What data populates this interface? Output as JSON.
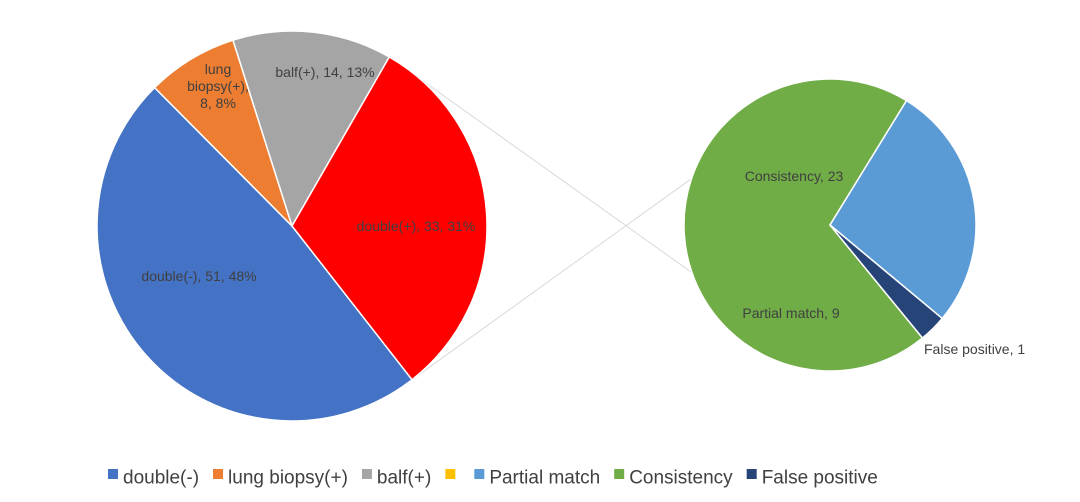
{
  "chart_data": [
    {
      "type": "pie",
      "categories": [
        "double(-)",
        "lung biopsy(+)",
        "balf(+)",
        "double(+)"
      ],
      "values": [
        51,
        8,
        14,
        33
      ],
      "percent_labels": [
        "48%",
        "8%",
        "13%",
        "31%"
      ],
      "colors": [
        "#4472C4",
        "#ED7D31",
        "#A5A5A5",
        "#FF0000"
      ],
      "data_labels": [
        "double(-), 51, 48%",
        "lung biopsy(+), 8, 8%",
        "balf(+), 14, 13%",
        "double(+), 33, 31%"
      ]
    },
    {
      "type": "pie",
      "categories": [
        "Consistency",
        "Partial match",
        "False positive"
      ],
      "values": [
        23,
        9,
        1
      ],
      "colors": [
        "#70AD47",
        "#5B9BD5",
        "#264478"
      ],
      "data_labels": [
        "Consistency, 23",
        "Partial match, 9",
        "False positive, 1"
      ]
    }
  ],
  "legend": {
    "position": "bottom",
    "items": [
      {
        "label": "double(-)",
        "color": "#4472C4"
      },
      {
        "label": "lung biopsy(+)",
        "color": "#ED7D31"
      },
      {
        "label": "balf(+)",
        "color": "#A5A5A5"
      },
      {
        "label": "",
        "color": "#FFC000"
      },
      {
        "label": "Partial match",
        "color": "#5B9BD5"
      },
      {
        "label": "Consistency",
        "color": "#70AD47"
      },
      {
        "label": "False positive",
        "color": "#264478"
      }
    ]
  }
}
